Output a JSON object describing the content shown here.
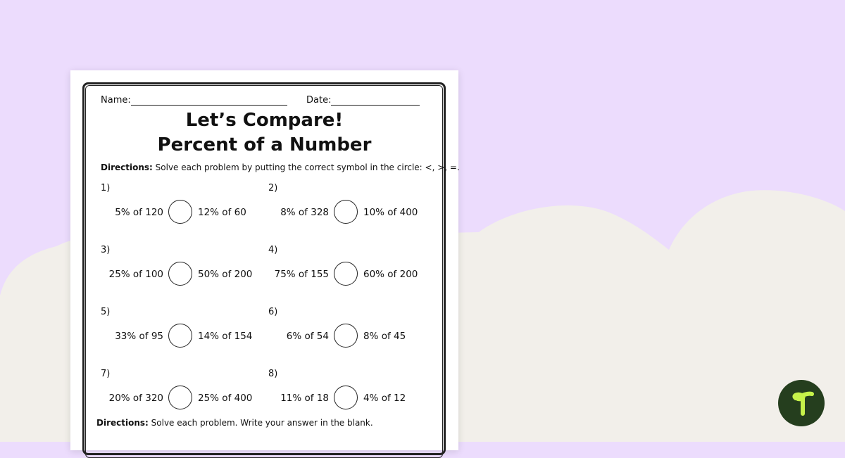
{
  "worksheet": {
    "name_label": "Name:",
    "date_label": "Date:",
    "title_line1": "Let’s Compare!",
    "title_line2": "Percent of a Number",
    "directions1_bold": "Directions:",
    "directions1_text": "Solve each problem by putting the correct symbol in the circle: <, >, =.",
    "problems": [
      {
        "num": "1)",
        "left": "5% of 120",
        "right": "12% of 60"
      },
      {
        "num": "2)",
        "left": "8% of 328",
        "right": "10% of 400"
      },
      {
        "num": "3)",
        "left": "25% of 100",
        "right": "50% of 200"
      },
      {
        "num": "4)",
        "left": "75% of 155",
        "right": "60% of 200"
      },
      {
        "num": "5)",
        "left": "33% of 95",
        "right": "14% of 154"
      },
      {
        "num": "6)",
        "left": "6% of 54",
        "right": "8% of 45"
      },
      {
        "num": "7)",
        "left": "20% of 320",
        "right": "25% of 400"
      },
      {
        "num": "8)",
        "left": "11% of 18",
        "right": "4% of 12"
      }
    ],
    "directions2_bold": "Directions:",
    "directions2_text": "Solve each problem. Write your answer in the blank."
  },
  "colors": {
    "background_top": "#ecdcfd",
    "background_cloud": "#f2efea",
    "logo_bg": "#253e1e",
    "logo_fg": "#c6f24a"
  },
  "logo": {
    "icon": "teach-starter-sprout-logo"
  }
}
